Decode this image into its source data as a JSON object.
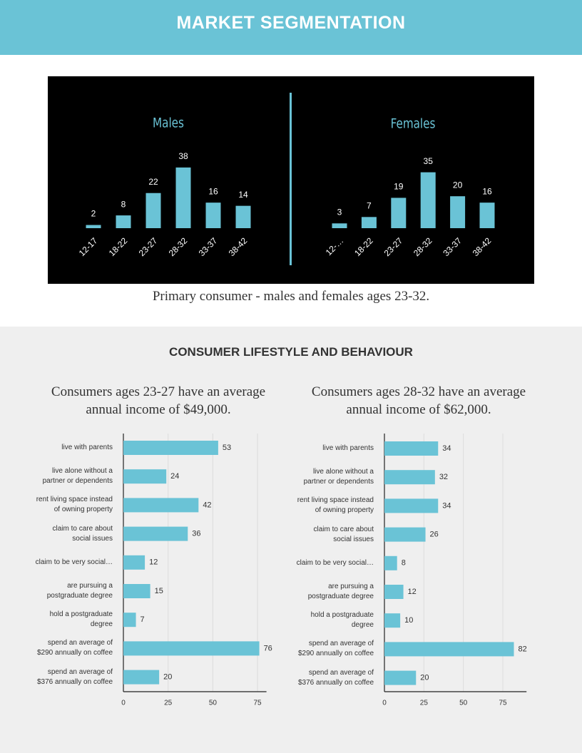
{
  "header": {
    "title": "MARKET SEGMENTATION"
  },
  "caption": "Primary consumer - males and females ages 23-32.",
  "section_title": "CONSUMER LIFESTYLE AND BEHAVIOUR",
  "chart_data": [
    {
      "type": "bar",
      "title": "Males",
      "categories": [
        "12-17",
        "18-22",
        "23-27",
        "28-32",
        "33-37",
        "38-42"
      ],
      "values": [
        2,
        8,
        22,
        38,
        16,
        14
      ],
      "color": "#6ac3d6"
    },
    {
      "type": "bar",
      "title": "Females",
      "categories": [
        "12-…",
        "18-22",
        "23-27",
        "28-32",
        "33-37",
        "38-42"
      ],
      "values": [
        3,
        7,
        19,
        35,
        20,
        16
      ],
      "color": "#6ac3d6"
    },
    {
      "type": "hbar",
      "title": "Consumers ages 23-27 have an average annual income of $49,000.",
      "categories": [
        "live with parents",
        "live alone without a\npartner or dependents",
        "rent living space instead\nof owning property",
        "claim to care about\nsocial issues",
        "claim to be very social…",
        "are pursuing a\npostgraduate degree",
        "hold a postgraduate\ndegree",
        "spend an average of\n$290 annually on coffee",
        "spend an average of\n$376 annually on coffee"
      ],
      "values": [
        53,
        24,
        42,
        36,
        12,
        15,
        7,
        76,
        20
      ],
      "color": "#6ac3d6",
      "xlim": [
        0,
        80
      ],
      "xticks": [
        0,
        25,
        50,
        75
      ],
      "grid": true
    },
    {
      "type": "hbar",
      "title": "Consumers ages 28-32 have an average annual income of $62,000.",
      "categories": [
        "live with parents",
        "live alone without a\npartner or dependents",
        "rent living space instead\nof owning property",
        "claim to care about\nsocial issues",
        "claim to be very social…",
        "are pursuing a\npostgraduate degree",
        "hold a postgraduate\ndegree",
        "spend an average of\n$290 annually on coffee",
        "spend an average of\n$376 annually on coffee"
      ],
      "values": [
        34,
        32,
        34,
        26,
        8,
        12,
        10,
        82,
        20
      ],
      "color": "#6ac3d6",
      "xlim": [
        0,
        90
      ],
      "xticks": [
        0,
        25,
        50,
        75
      ],
      "grid": true
    }
  ]
}
